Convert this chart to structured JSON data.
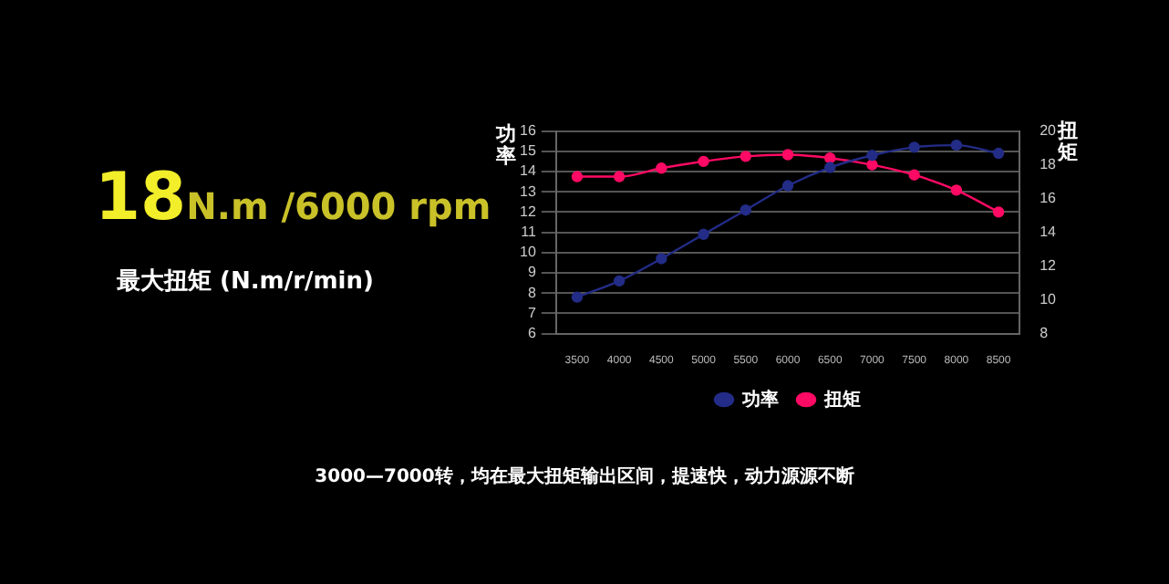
{
  "chart_data": {
    "type": "line",
    "ylabel": "功率",
    "y2label": "扭矩",
    "categories": [
      "3500",
      "4000",
      "4500",
      "5000",
      "5500",
      "6000",
      "6500",
      "7000",
      "7500",
      "8000",
      "8500"
    ],
    "series": [
      {
        "name": "功率",
        "color": "#232c86",
        "values": [
          7.8,
          8.6,
          9.7,
          10.9,
          12.1,
          13.3,
          14.2,
          14.8,
          15.2,
          15.3,
          14.9
        ]
      },
      {
        "name": "扭矩",
        "color": "#ff0a64",
        "axis": "y2",
        "values": [
          17.3,
          17.3,
          17.8,
          18.2,
          18.5,
          18.6,
          18.4,
          18.0,
          17.4,
          16.5,
          15.2
        ]
      }
    ],
    "ylim": [
      6,
      16
    ],
    "yticks": [
      6,
      7,
      8,
      9,
      10,
      11,
      12,
      13,
      14,
      15,
      16
    ],
    "y2lim": [
      8,
      20
    ],
    "y2ticks": [
      8,
      10,
      12,
      14,
      16,
      18,
      20
    ],
    "grid": "y",
    "legend": "bottom",
    "marker": "circle",
    "annotations": [
      "18",
      "N.m /6000 rpm",
      "最大扭矩 (N.m/r/min)",
      "3000—7000转，均在最大扭矩输出区间，提速快，动力源源不断"
    ]
  }
}
